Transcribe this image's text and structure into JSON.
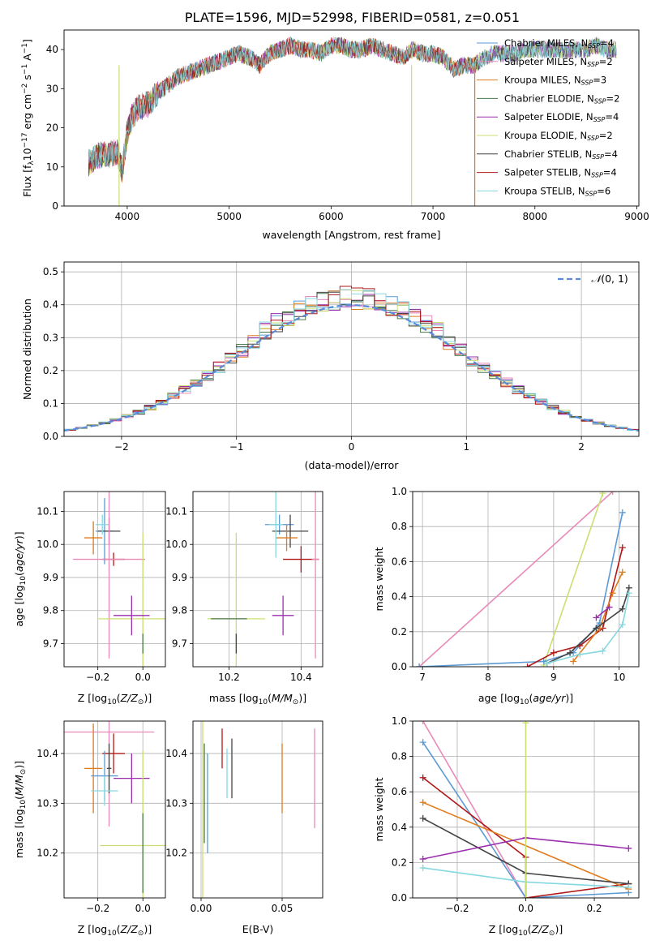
{
  "title": "PLATE=1596, MJD=52998, FIBERID=0581, z=0.051",
  "colors": {
    "Chabrier MILES": "#5b9ad5",
    "Salpeter MILES": "#e88ab8",
    "Kroupa MILES": "#e07b1e",
    "Chabrier ELODIE": "#4a7a4a",
    "Salpeter ELODIE": "#9b2fae",
    "Kroupa ELODIE": "#c8e070",
    "Chabrier STELIB": "#444444",
    "Salpeter STELIB": "#b01818",
    "Kroupa STELIB": "#86d8e0"
  },
  "chart_data": [
    {
      "id": "spectrum",
      "type": "line",
      "xlabel": "wavelength [Angstrom, rest frame]",
      "ylabel": "Flux [fλ10⁻¹⁷ erg cm⁻² s⁻¹ A⁻¹]",
      "xlim": [
        3380,
        9020
      ],
      "ylim": [
        0,
        45
      ],
      "xticks": [
        4000,
        5000,
        6000,
        7000,
        8000,
        9000
      ],
      "yticks": [
        0,
        10,
        20,
        30,
        40
      ],
      "grid": false,
      "legend_position": "top-right",
      "legend": [
        "Chabrier MILES, N_SSP=4",
        "Salpeter MILES, N_SSP=2",
        "Kroupa MILES, N_SSP=3",
        "Chabrier ELODIE, N_SSP=2",
        "Salpeter ELODIE, N_SSP=4",
        "Kroupa ELODIE, N_SSP=2",
        "Chabrier STELIB, N_SSP=4",
        "Salpeter STELIB, N_SSP=4",
        "Kroupa STELIB, N_SSP=6"
      ],
      "legend_display": [
        {
          "pre": "Chabrier MILES, N",
          "sub": "SSP",
          "post": "=4"
        },
        {
          "pre": "Salpeter MILES, N",
          "sub": "SSP",
          "post": "=2"
        },
        {
          "pre": "Kroupa MILES, N",
          "sub": "SSP",
          "post": "=3"
        },
        {
          "pre": "Chabrier ELODIE, N",
          "sub": "SSP",
          "post": "=2"
        },
        {
          "pre": "Salpeter ELODIE, N",
          "sub": "SSP",
          "post": "=4"
        },
        {
          "pre": "Kroupa ELODIE, N",
          "sub": "SSP",
          "post": "=2"
        },
        {
          "pre": "Chabrier STELIB, N",
          "sub": "SSP",
          "post": "=4"
        },
        {
          "pre": "Salpeter STELIB, N",
          "sub": "SSP",
          "post": "=4"
        },
        {
          "pre": "Kroupa STELIB, N",
          "sub": "SSP",
          "post": "=6"
        }
      ],
      "series_colors": [
        "#5b9ad5",
        "#e88ab8",
        "#e07b1e",
        "#4a7a4a",
        "#9b2fae",
        "#c8e070",
        "#444444",
        "#b01818",
        "#86d8e0"
      ],
      "x": [
        3620,
        3700,
        3800,
        3900,
        3950,
        4000,
        4050,
        4100,
        4200,
        4300,
        4400,
        4500,
        4600,
        4700,
        4800,
        4900,
        5000,
        5100,
        5200,
        5300,
        5400,
        5500,
        5600,
        5700,
        5800,
        5900,
        6000,
        6100,
        6200,
        6300,
        6400,
        6500,
        6600,
        6700,
        6800,
        6900,
        7000,
        7100,
        7200,
        7300,
        7400,
        7500,
        7600,
        7700,
        7800,
        7900,
        8000,
        8100,
        8200,
        8300,
        8400,
        8500,
        8600,
        8700,
        8800
      ],
      "y": [
        11,
        13,
        13,
        14,
        9,
        19,
        23,
        25,
        26,
        29,
        31,
        33,
        34,
        35,
        36,
        37,
        38,
        39,
        38,
        36,
        39,
        40,
        41,
        40,
        40,
        39,
        41,
        41,
        40,
        40,
        41,
        40,
        39,
        38,
        40,
        39,
        39,
        38,
        35,
        36,
        36,
        38,
        39,
        39,
        39,
        40,
        40,
        40,
        40,
        40,
        40,
        40,
        41,
        40,
        40
      ]
    },
    {
      "id": "residuals",
      "type": "histogram",
      "xlabel": "(data-model)/error",
      "ylabel": "Normed distribution",
      "xlim": [
        -2.5,
        2.5
      ],
      "ylim": [
        0,
        0.53
      ],
      "xticks": [
        -2,
        -1,
        0,
        1,
        2
      ],
      "yticks": [
        0.0,
        0.1,
        0.2,
        0.3,
        0.4,
        0.5
      ],
      "grid": true,
      "legend_position": "top-right",
      "legend": [
        "N(0,1)"
      ],
      "bin_width": 0.1,
      "bins_start": -2.5,
      "normal_curve": {
        "mean": 0,
        "sigma": 1
      },
      "series_colors": [
        "#5b9ad5",
        "#e88ab8",
        "#e07b1e",
        "#4a7a4a",
        "#9b2fae",
        "#c8e070",
        "#444444",
        "#b01818",
        "#86d8e0"
      ]
    },
    {
      "id": "age-vs-Z",
      "type": "errorbar",
      "xlabel": "Z [log10(Z/Z⊙)]",
      "ylabel": "age [log10(age/yr)]",
      "xlim": [
        -0.35,
        0.1
      ],
      "ylim": [
        9.63,
        10.16
      ],
      "xticks": [
        -0.2,
        0.0
      ],
      "yticks": [
        9.7,
        9.8,
        9.9,
        10.0,
        10.1
      ],
      "grid": true,
      "points": [
        {
          "x": -0.17,
          "y": 10.04,
          "xerr": 0.04,
          "yerr": 0.1,
          "c": "#5b9ad5"
        },
        {
          "x": -0.15,
          "y": 10.04,
          "xerr": 0.05,
          "yerr": 0.04,
          "c": "#444444"
        },
        {
          "x": -0.18,
          "y": 10.06,
          "xerr": 0.03,
          "yerr": 0.03,
          "c": "#86d8e0"
        },
        {
          "x": -0.22,
          "y": 10.02,
          "xerr": 0.04,
          "yerr": 0.05,
          "c": "#e07b1e"
        },
        {
          "x": -0.13,
          "y": 9.955,
          "xerr": 0.05,
          "yerr": 0.02,
          "c": "#b01818"
        },
        {
          "x": -0.15,
          "y": 9.955,
          "xerr": 0.16,
          "yerr": 0.3,
          "c": "#e88ab8"
        },
        {
          "x": 0.0,
          "y": 9.775,
          "xerr": 0.2,
          "yerr": 0.26,
          "c": "#c8e070"
        },
        {
          "x": -0.05,
          "y": 9.785,
          "xerr": 0.08,
          "yerr": 0.06,
          "c": "#9b2fae"
        },
        {
          "x": 0.0,
          "y": 9.7,
          "xerr": 0.0,
          "yerr": 0.03,
          "c": "#4a7a4a"
        }
      ]
    },
    {
      "id": "age-vs-mass",
      "type": "errorbar",
      "xlabel": "mass [log10(M/M⊙)]",
      "ylabel": "",
      "xlim": [
        10.1,
        10.46
      ],
      "ylim": [
        9.63,
        10.16
      ],
      "xticks": [
        10.2,
        10.4
      ],
      "yticks": [
        9.7,
        9.8,
        9.9,
        10.0,
        10.1
      ],
      "grid": true,
      "points": [
        {
          "x": 10.34,
          "y": 10.06,
          "xerr": 0.04,
          "yerr": 0.03,
          "c": "#5b9ad5"
        },
        {
          "x": 10.37,
          "y": 10.04,
          "xerr": 0.05,
          "yerr": 0.05,
          "c": "#444444"
        },
        {
          "x": 10.36,
          "y": 10.02,
          "xerr": 0.03,
          "yerr": 0.04,
          "c": "#e07b1e"
        },
        {
          "x": 10.33,
          "y": 10.06,
          "xerr": 0.02,
          "yerr": 0.1,
          "c": "#86d8e0"
        },
        {
          "x": 10.4,
          "y": 9.955,
          "xerr": 0.05,
          "yerr": 0.04,
          "c": "#b01818"
        },
        {
          "x": 10.44,
          "y": 9.955,
          "xerr": 0.01,
          "yerr": 0.3,
          "c": "#e88ab8"
        },
        {
          "x": 10.22,
          "y": 9.775,
          "xerr": 0.08,
          "yerr": 0.26,
          "c": "#c8e070"
        },
        {
          "x": 10.35,
          "y": 9.785,
          "xerr": 0.03,
          "yerr": 0.06,
          "c": "#9b2fae"
        },
        {
          "x": 10.2,
          "y": 9.775,
          "xerr": 0.05,
          "yerr": 0.0,
          "c": "#4a7a4a"
        },
        {
          "x": 10.22,
          "y": 9.7,
          "xerr": 0.0,
          "yerr": 0.03,
          "c": "#444444"
        }
      ]
    },
    {
      "id": "weight-vs-age",
      "type": "line",
      "xlabel": "age [log10(age/yr)]",
      "ylabel": "mass weight",
      "xlim": [
        6.85,
        10.3
      ],
      "ylim": [
        0,
        1
      ],
      "xticks": [
        7,
        8,
        9,
        10
      ],
      "yticks": [
        0.0,
        0.2,
        0.4,
        0.6,
        0.8,
        1.0
      ],
      "grid": true,
      "series": [
        {
          "c": "#e88ab8",
          "x": [
            6.95,
            9.9
          ],
          "y": [
            0.0,
            1.0
          ]
        },
        {
          "c": "#c8e070",
          "x": [
            8.85,
            9.75
          ],
          "y": [
            0.01,
            0.99
          ]
        },
        {
          "c": "#5b9ad5",
          "x": [
            6.95,
            8.85,
            9.3,
            9.7,
            10.05
          ],
          "y": [
            0.0,
            0.03,
            0.08,
            0.25,
            0.88
          ]
        },
        {
          "c": "#b01818",
          "x": [
            8.6,
            9.0,
            9.4,
            9.75,
            10.05
          ],
          "y": [
            0.0,
            0.08,
            0.12,
            0.22,
            0.68
          ]
        },
        {
          "c": "#e07b1e",
          "x": [
            9.3,
            9.7,
            9.9,
            10.05
          ],
          "y": [
            0.03,
            0.22,
            0.42,
            0.54
          ]
        },
        {
          "c": "#9b2fae",
          "x": [
            9.65,
            9.85
          ],
          "y": [
            0.28,
            0.34
          ]
        },
        {
          "c": "#444444",
          "x": [
            8.9,
            9.25,
            9.65,
            10.05,
            10.15
          ],
          "y": [
            0.02,
            0.08,
            0.22,
            0.33,
            0.45
          ]
        },
        {
          "c": "#86d8e0",
          "x": [
            8.9,
            9.4,
            9.75,
            10.05,
            10.15
          ],
          "y": [
            0.02,
            0.07,
            0.09,
            0.24,
            0.42
          ]
        }
      ]
    },
    {
      "id": "mass-vs-Z",
      "type": "errorbar",
      "xlabel": "Z [log10(Z/Z⊙)]",
      "ylabel": "mass [log10(M/M⊙)]",
      "xlim": [
        -0.35,
        0.1
      ],
      "ylim": [
        10.11,
        10.465
      ],
      "xticks": [
        -0.2,
        0.0
      ],
      "yticks": [
        10.2,
        10.3,
        10.4
      ],
      "grid": true,
      "points": [
        {
          "x": -0.15,
          "y": 10.443,
          "xerr": 0.2,
          "yerr": 0.19,
          "c": "#e88ab8"
        },
        {
          "x": -0.13,
          "y": 10.4,
          "xerr": 0.05,
          "yerr": 0.04,
          "c": "#b01818"
        },
        {
          "x": -0.22,
          "y": 10.37,
          "xerr": 0.04,
          "yerr": 0.09,
          "c": "#e07b1e"
        },
        {
          "x": -0.17,
          "y": 10.355,
          "xerr": 0.06,
          "yerr": 0.05,
          "c": "#5b9ad5"
        },
        {
          "x": -0.15,
          "y": 10.37,
          "xerr": 0.01,
          "yerr": 0.05,
          "c": "#444444"
        },
        {
          "x": -0.17,
          "y": 10.325,
          "xerr": 0.06,
          "yerr": 0.03,
          "c": "#86d8e0"
        },
        {
          "x": -0.05,
          "y": 10.35,
          "xerr": 0.08,
          "yerr": 0.05,
          "c": "#9b2fae"
        },
        {
          "x": 0.0,
          "y": 10.215,
          "xerr": 0.19,
          "yerr": 0.19,
          "c": "#c8e070"
        },
        {
          "x": 0.0,
          "y": 10.2,
          "xerr": 0.0,
          "yerr": 0.08,
          "c": "#4a7a4a"
        }
      ]
    },
    {
      "id": "mass-vs-EBV",
      "type": "errorbar",
      "xlabel": "E(B-V)",
      "ylabel": "",
      "xlim": [
        -0.005,
        0.075
      ],
      "ylim": [
        10.11,
        10.465
      ],
      "xticks": [
        0.0,
        0.05
      ],
      "yticks": [
        10.2,
        10.3,
        10.4
      ],
      "grid": true,
      "points": [
        {
          "x": 0.001,
          "y": 10.3,
          "xerr": 0.0,
          "yerr": 0.19,
          "c": "#c8e070"
        },
        {
          "x": 0.002,
          "y": 10.32,
          "xerr": 0.0,
          "yerr": 0.1,
          "c": "#4a7a4a"
        },
        {
          "x": 0.004,
          "y": 10.3,
          "xerr": 0.0,
          "yerr": 0.1,
          "c": "#5b9ad5"
        },
        {
          "x": 0.013,
          "y": 10.41,
          "xerr": 0.0,
          "yerr": 0.04,
          "c": "#b01818"
        },
        {
          "x": 0.016,
          "y": 10.36,
          "xerr": 0.0,
          "yerr": 0.05,
          "c": "#86d8e0"
        },
        {
          "x": 0.019,
          "y": 10.37,
          "xerr": 0.0,
          "yerr": 0.06,
          "c": "#444444"
        },
        {
          "x": 0.05,
          "y": 10.35,
          "xerr": 0.0,
          "yerr": 0.07,
          "c": "#e07b1e"
        },
        {
          "x": 0.07,
          "y": 10.35,
          "xerr": 0.0,
          "yerr": 0.1,
          "c": "#e88ab8"
        }
      ]
    },
    {
      "id": "weight-vs-Z",
      "type": "line",
      "xlabel": "Z [log10(Z/Z⊙)]",
      "ylabel": "mass weight",
      "xlim": [
        -0.33,
        0.33
      ],
      "ylim": [
        0,
        1
      ],
      "xticks": [
        -0.2,
        0.0,
        0.2
      ],
      "yticks": [
        0.0,
        0.2,
        0.4,
        0.6,
        0.8,
        1.0
      ],
      "grid": true,
      "series": [
        {
          "c": "#e88ab8",
          "x": [
            -0.3,
            0.0
          ],
          "y": [
            1.0,
            0.0
          ]
        },
        {
          "c": "#5b9ad5",
          "x": [
            -0.3,
            0.0,
            0.3
          ],
          "y": [
            0.88,
            0.0,
            0.03
          ]
        },
        {
          "c": "#b01818",
          "x": [
            -0.3,
            0.0,
            0.0,
            0.3
          ],
          "y": [
            0.68,
            0.23,
            0.0,
            0.08
          ]
        },
        {
          "c": "#e07b1e",
          "x": [
            -0.3,
            0.3
          ],
          "y": [
            0.54,
            0.05
          ]
        },
        {
          "c": "#444444",
          "x": [
            -0.3,
            0.0,
            0.3
          ],
          "y": [
            0.45,
            0.14,
            0.08
          ]
        },
        {
          "c": "#9b2fae",
          "x": [
            -0.3,
            0.0,
            0.3
          ],
          "y": [
            0.22,
            0.34,
            0.28
          ]
        },
        {
          "c": "#86d8e0",
          "x": [
            -0.3,
            0.0,
            0.3
          ],
          "y": [
            0.17,
            0.09,
            0.06
          ]
        },
        {
          "c": "#c8e070",
          "x": [
            0.0,
            0.0
          ],
          "y": [
            0.0,
            0.99
          ]
        }
      ]
    }
  ]
}
